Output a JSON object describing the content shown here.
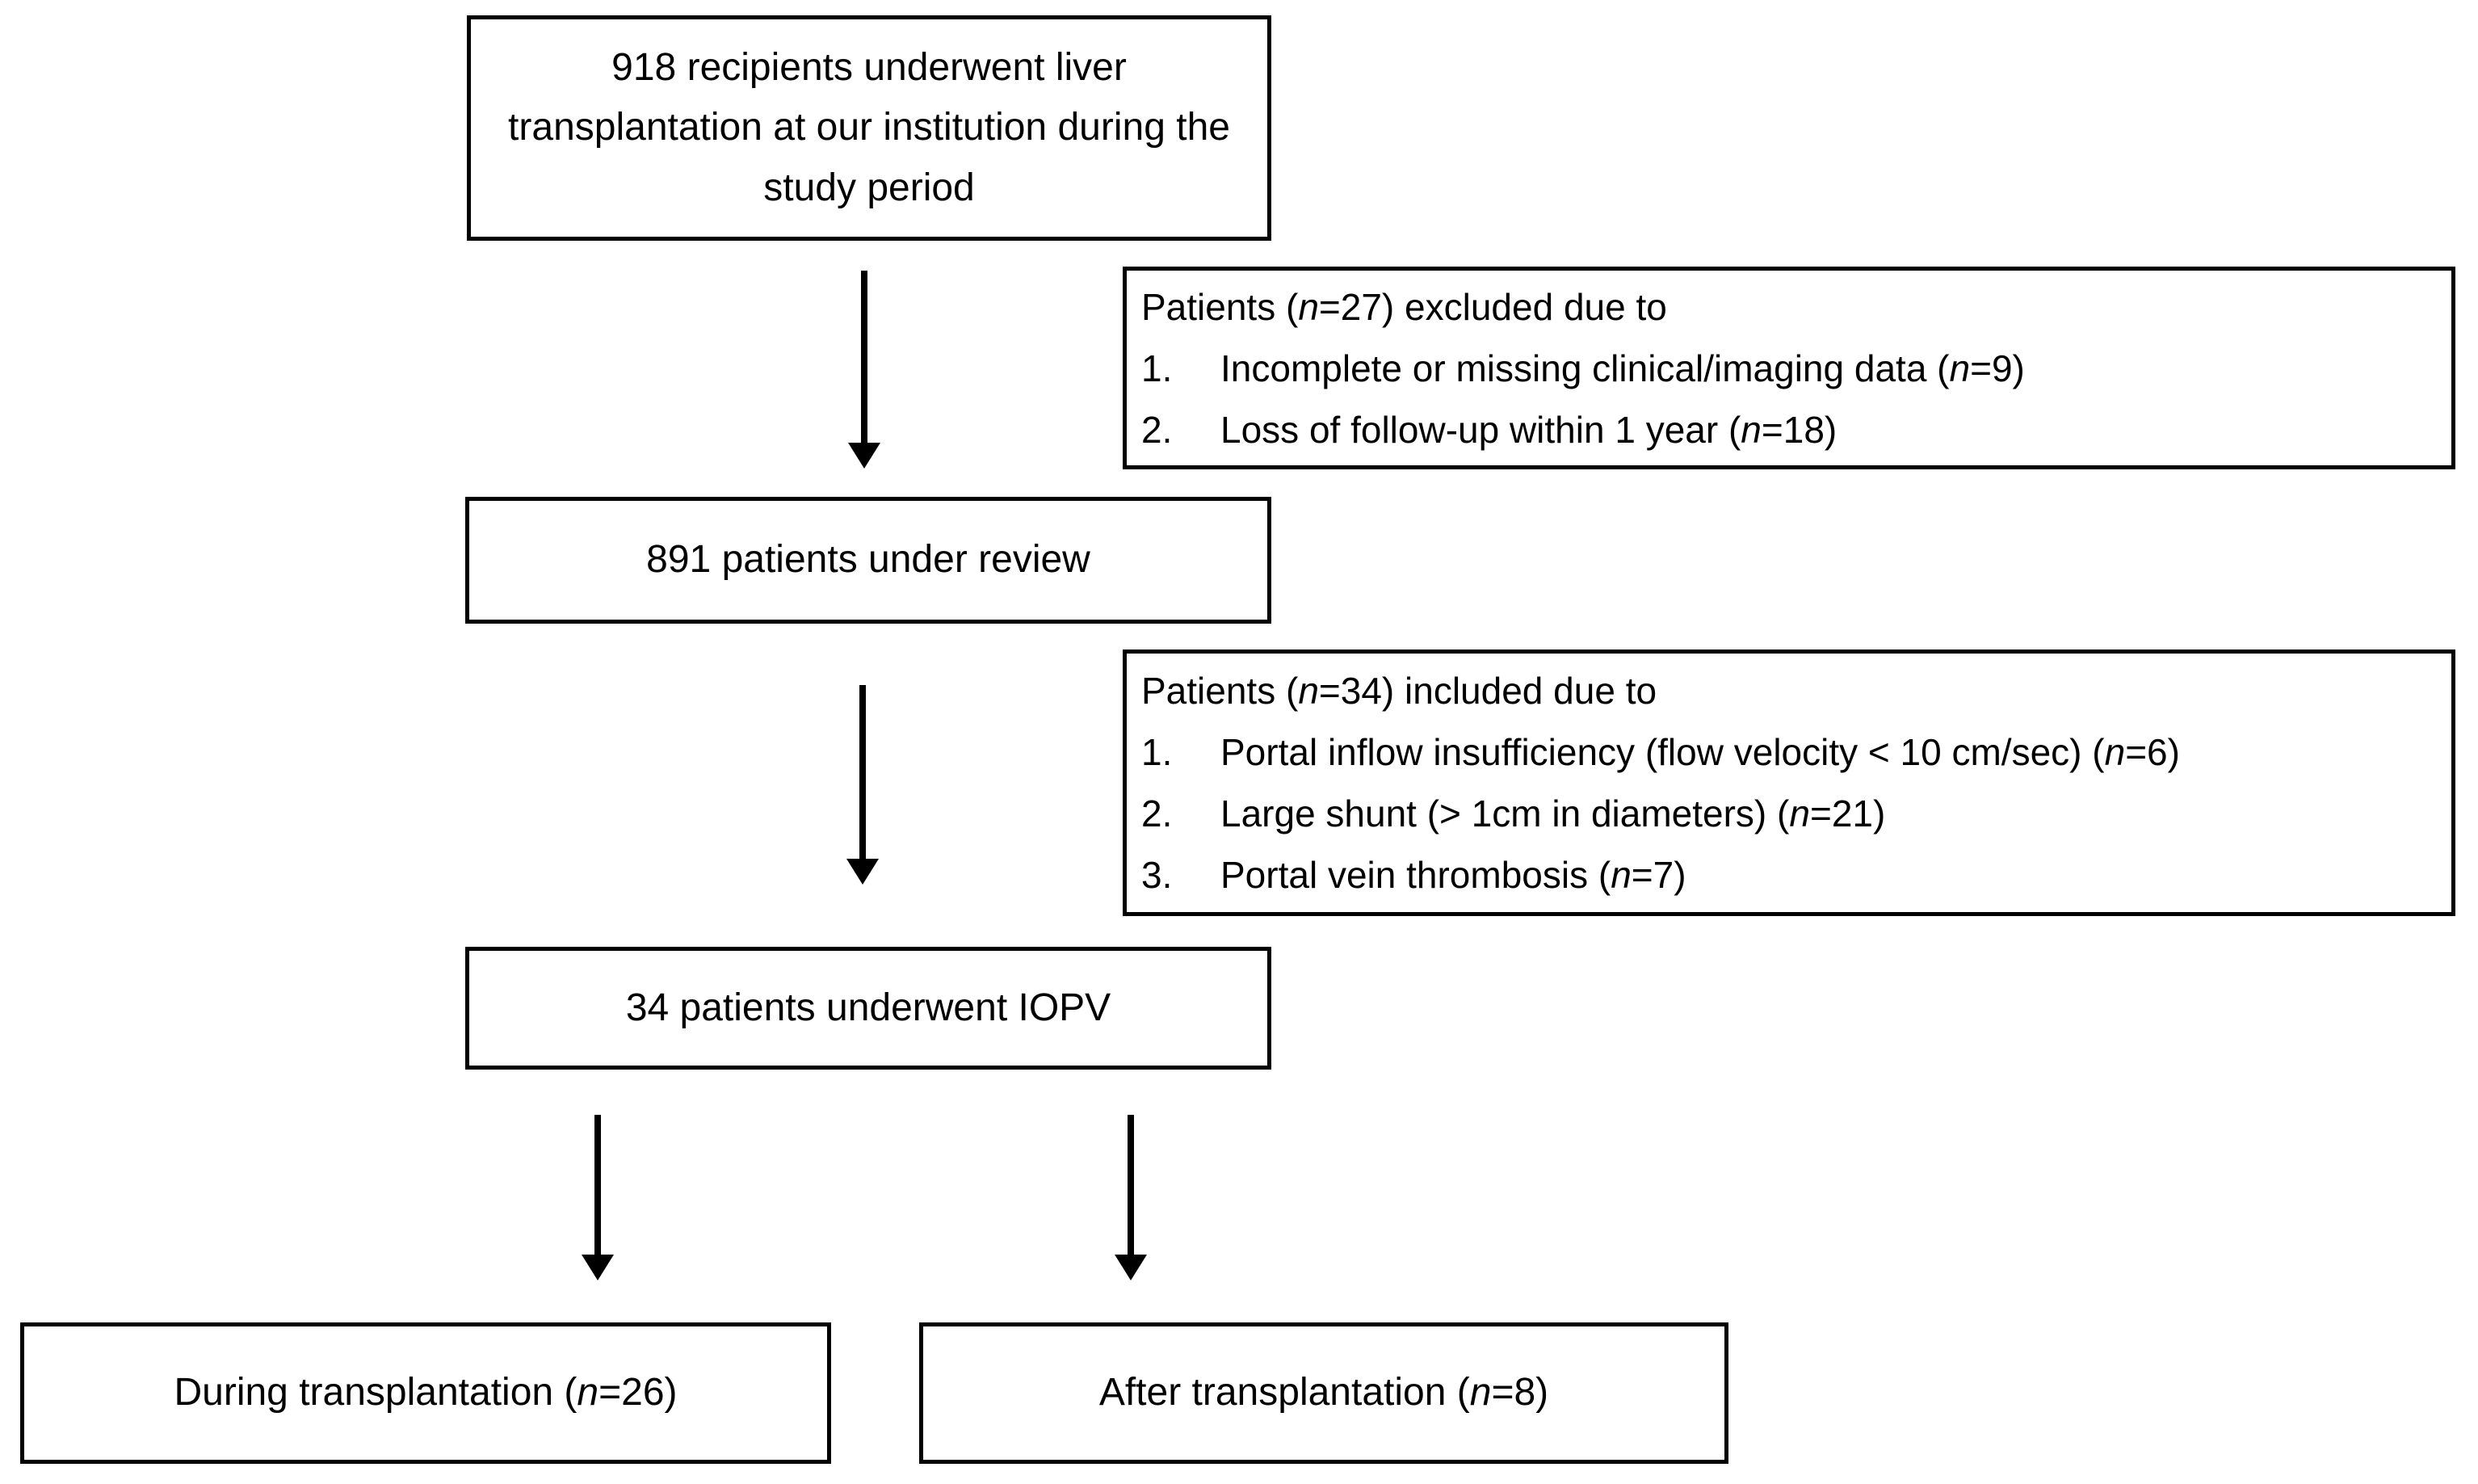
{
  "diagram": {
    "colors": {
      "ink": "#000000",
      "paper": "#ffffff"
    },
    "top_box": {
      "text": "918 recipients underwent liver transplantation at our institution during the study period"
    },
    "excluded_box": {
      "header": {
        "pre": "Patients (",
        "n": "n",
        "post": "=27) excluded due to"
      },
      "items": [
        {
          "num": "1.",
          "pre": "Incomplete or missing clinical/imaging data (",
          "n": "n",
          "post": "=9)"
        },
        {
          "num": "2.",
          "pre": "Loss of follow-up within 1 year (",
          "n": "n",
          "post": "=18)"
        }
      ]
    },
    "review_box": {
      "text": "891 patients under review"
    },
    "included_box": {
      "header": {
        "pre": "Patients (",
        "n": "n",
        "post": "=34) included due to"
      },
      "items": [
        {
          "num": "1.",
          "pre": "Portal inflow insufficiency (flow velocity < 10 cm/sec) (",
          "n": "n",
          "post": "=6)"
        },
        {
          "num": "2.",
          "pre": "Large shunt (> 1cm in diameters) (",
          "n": "n",
          "post": "=21)"
        },
        {
          "num": "3.",
          "pre": "Portal vein thrombosis (",
          "n": "n",
          "post": "=7)"
        }
      ]
    },
    "iopv_box": {
      "text": "34 patients underwent IOPV"
    },
    "during_box": {
      "pre": "During transplantation (",
      "n": "n",
      "post": "=26)"
    },
    "after_box": {
      "pre": "After transplantation (",
      "n": "n",
      "post": "=8)"
    }
  }
}
